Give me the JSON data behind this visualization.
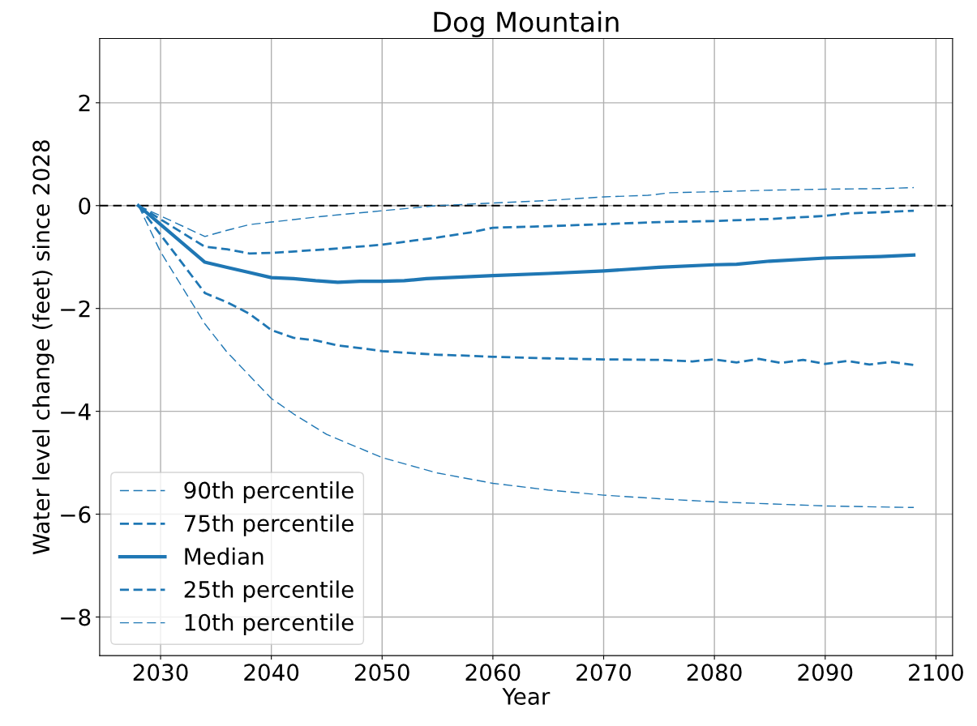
{
  "chart_data": {
    "type": "line",
    "title": "Dog Mountain",
    "xlabel": "Year",
    "ylabel": "Water level change (feet) since 2028",
    "xlim": [
      2024.5,
      2101.5
    ],
    "xticks": [
      2030,
      2040,
      2050,
      2060,
      2070,
      2080,
      2090,
      2100
    ],
    "ylim": [
      -8.75,
      3.25
    ],
    "yticks": [
      {
        "value": -8,
        "label": "−8"
      },
      {
        "value": -6,
        "label": "−6"
      },
      {
        "value": -4,
        "label": "−4"
      },
      {
        "value": -2,
        "label": "−2"
      },
      0,
      2
    ],
    "grid": true,
    "legend": "bottom left",
    "ref_lines": [
      {
        "axis": "y",
        "value": 0,
        "color": "#000000",
        "line_style": "dashed"
      }
    ],
    "series": [
      {
        "name": "90th percentile",
        "color": "#1f77b4",
        "line_style": "dashed",
        "x": [
          2028,
          2034,
          2036,
          2038,
          2040,
          2045,
          2050,
          2055,
          2060,
          2065,
          2070,
          2074,
          2076,
          2080,
          2085,
          2090,
          2095,
          2098
        ],
        "values": [
          0,
          -0.6,
          -0.48,
          -0.37,
          -0.32,
          -0.2,
          -0.1,
          0,
          0.05,
          0.1,
          0.17,
          0.2,
          0.25,
          0.27,
          0.3,
          0.32,
          0.33,
          0.35
        ]
      },
      {
        "name": "75th percentile",
        "color": "#1f77b4",
        "line_style": "dashed",
        "x": [
          2028,
          2034,
          2036,
          2038,
          2040,
          2045,
          2050,
          2055,
          2058,
          2060,
          2065,
          2070,
          2075,
          2080,
          2085,
          2090,
          2092,
          2095,
          2098
        ],
        "values": [
          0,
          -0.8,
          -0.85,
          -0.93,
          -0.92,
          -0.85,
          -0.76,
          -0.62,
          -0.52,
          -0.43,
          -0.4,
          -0.36,
          -0.32,
          -0.3,
          -0.26,
          -0.2,
          -0.15,
          -0.13,
          -0.1
        ]
      },
      {
        "name": "Median",
        "color": "#1f77b4",
        "line_style": "solid",
        "x": [
          2028,
          2034,
          2036,
          2038,
          2040,
          2042,
          2044,
          2046,
          2048,
          2050,
          2052,
          2054,
          2056,
          2058,
          2060,
          2065,
          2070,
          2075,
          2080,
          2082,
          2085,
          2090,
          2095,
          2098
        ],
        "values": [
          0,
          -1.1,
          -1.2,
          -1.3,
          -1.4,
          -1.42,
          -1.46,
          -1.49,
          -1.47,
          -1.47,
          -1.46,
          -1.42,
          -1.4,
          -1.38,
          -1.36,
          -1.32,
          -1.27,
          -1.2,
          -1.15,
          -1.14,
          -1.08,
          -1.02,
          -0.99,
          -0.96
        ]
      },
      {
        "name": "25th percentile",
        "color": "#1f77b4",
        "line_style": "dashed",
        "x": [
          2028,
          2034,
          2036,
          2038,
          2040,
          2042,
          2044,
          2046,
          2048,
          2050,
          2052,
          2055,
          2058,
          2060,
          2065,
          2070,
          2075,
          2078,
          2080,
          2082,
          2084,
          2086,
          2088,
          2090,
          2092,
          2094,
          2096,
          2098
        ],
        "values": [
          0,
          -1.7,
          -1.88,
          -2.1,
          -2.42,
          -2.57,
          -2.62,
          -2.72,
          -2.77,
          -2.83,
          -2.86,
          -2.9,
          -2.92,
          -2.94,
          -2.97,
          -2.99,
          -3.0,
          -3.03,
          -2.99,
          -3.05,
          -2.98,
          -3.06,
          -3.0,
          -3.08,
          -3.02,
          -3.09,
          -3.04,
          -3.1
        ]
      },
      {
        "name": "10th percentile",
        "color": "#1f77b4",
        "line_style": "dashed",
        "x": [
          2028,
          2030,
          2034,
          2036,
          2038,
          2040,
          2042,
          2045,
          2050,
          2055,
          2060,
          2065,
          2070,
          2075,
          2080,
          2085,
          2090,
          2095,
          2098
        ],
        "values": [
          0,
          -0.9,
          -2.3,
          -2.85,
          -3.3,
          -3.75,
          -4.05,
          -4.45,
          -4.9,
          -5.2,
          -5.4,
          -5.53,
          -5.63,
          -5.7,
          -5.76,
          -5.8,
          -5.84,
          -5.86,
          -5.87
        ]
      }
    ]
  }
}
